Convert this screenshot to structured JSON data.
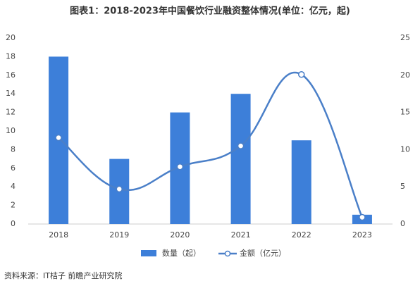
{
  "chart_data": {
    "type": "combo",
    "title": "图表1：2018-2023年中国餐饮行业融资整体情况(单位：亿元，起)",
    "categories": [
      "2018",
      "2019",
      "2020",
      "2021",
      "2022",
      "2023"
    ],
    "series": [
      {
        "name": "数量（起）",
        "type": "bar",
        "color": "#3d7fd9",
        "values": [
          18,
          7,
          12,
          14,
          9,
          1
        ]
      },
      {
        "name": "金额（亿元）",
        "type": "line",
        "axis": "y2",
        "color": "#4a7fc8",
        "values": [
          11.6,
          4.7,
          7.7,
          10.5,
          20.1,
          0.9
        ]
      }
    ],
    "ylim": [
      0,
      20
    ],
    "yticks": [
      0,
      2,
      4,
      6,
      8,
      10,
      12,
      14,
      16,
      18,
      20
    ],
    "y2lim": [
      0,
      25
    ],
    "y2ticks": [
      0,
      5,
      10,
      15,
      20,
      25
    ],
    "source": "资料来源：IT桔子 前瞻产业研究院"
  }
}
